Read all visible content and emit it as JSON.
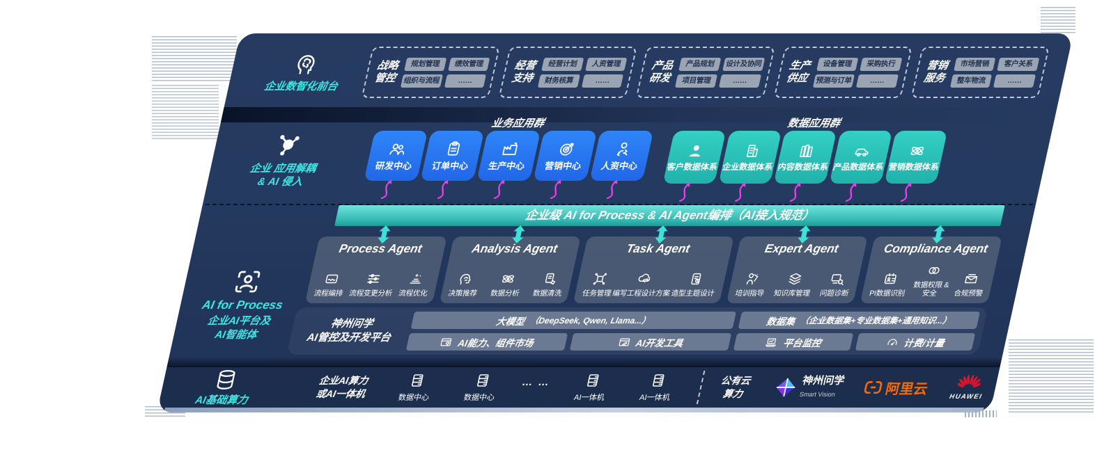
{
  "colors": {
    "panel_navy": "#25395f",
    "accent_cyan": "#3ce8e2",
    "box_blue": "#2b7bf6",
    "box_teal": "#2fc9be",
    "banner_teal": "#3fc4bd",
    "arrow_magenta": "#ee3ff0",
    "chip_gray": "#9ba4b3",
    "aliyun_orange": "#ff6a00",
    "huawei_red": "#e2132a"
  },
  "front_office": {
    "icon": "brain-head",
    "label": "企业数智化前台",
    "groups": [
      {
        "name": "战略管控",
        "items": [
          "规划管理",
          "绩效管理",
          "组织与流程",
          "……"
        ]
      },
      {
        "name": "经营支持",
        "items": [
          "经营计划",
          "人资管理",
          "财务核算",
          "……"
        ]
      },
      {
        "name": "产品研发",
        "items": [
          "产品规划",
          "设计及协同",
          "项目管理",
          "……"
        ]
      },
      {
        "name": "生产供应",
        "items": [
          "设备管理",
          "采购执行",
          "预测与订单",
          "……"
        ]
      },
      {
        "name": "营销服务",
        "items": [
          "市场营销",
          "客户关系",
          "整车物流",
          "……"
        ]
      }
    ]
  },
  "app_layer": {
    "icon": "molecule",
    "label_line1": "企业 应用解耦",
    "label_line2": "& AI 侵入",
    "business_group": {
      "title": "业务应用群",
      "boxes": [
        {
          "label": "研发中心",
          "icon": "team"
        },
        {
          "label": "订单中心",
          "icon": "clipboard"
        },
        {
          "label": "生产中心",
          "icon": "factory"
        },
        {
          "label": "营销中心",
          "icon": "target"
        },
        {
          "label": "人资中心",
          "icon": "hr-people"
        }
      ]
    },
    "data_group": {
      "title": "数据应用群",
      "boxes": [
        {
          "label": "客户数据体系",
          "icon": "person"
        },
        {
          "label": "企业数据体系",
          "icon": "building"
        },
        {
          "label": "内容数据体系",
          "icon": "books"
        },
        {
          "label": "产品数据体系",
          "icon": "car"
        },
        {
          "label": "营销数据体系",
          "icon": "atom"
        }
      ]
    }
  },
  "banner": {
    "text": "企业级 AI for Process & AI Agent编排（AI接入规范）"
  },
  "ai_layer": {
    "icon": "scan-person",
    "label_en": "AI for Process",
    "label_zh1": "企业AI平台及",
    "label_zh2": "AI智能体",
    "agents": [
      {
        "title": "Process Agent",
        "items": [
          {
            "label": "流程编排",
            "icon": "flow-box"
          },
          {
            "label": "流程变更分析",
            "icon": "sliders"
          },
          {
            "label": "流程优化",
            "icon": "optimize"
          }
        ]
      },
      {
        "title": "Analysis Agent",
        "items": [
          {
            "label": "决策推荐",
            "icon": "head-idea"
          },
          {
            "label": "数据分析",
            "icon": "atom"
          },
          {
            "label": "数据清洗",
            "icon": "doc-clean"
          }
        ]
      },
      {
        "title": "Task Agent",
        "items": [
          {
            "label": "任务管理",
            "icon": "task-grid"
          },
          {
            "label": "编写工程设计方案",
            "icon": "cloud-pen"
          },
          {
            "label": "造型主题设计",
            "icon": "card-check"
          }
        ]
      },
      {
        "title": "Expert Agent",
        "items": [
          {
            "label": "培训指导",
            "icon": "mentor"
          },
          {
            "label": "知识库管理",
            "icon": "layers"
          },
          {
            "label": "问题诊断",
            "icon": "diagnose"
          }
        ]
      },
      {
        "title": "Compliance Agent",
        "items": [
          {
            "label": "PI数据识别",
            "icon": "id-card"
          },
          {
            "label": "数据权限 & 安全",
            "icon": "rings"
          },
          {
            "label": "合规预警",
            "icon": "mail-alert"
          }
        ]
      }
    ]
  },
  "platform": {
    "name_line1": "神州问学",
    "name_line2": "AI管控及开发平台",
    "model_bar_title": "大模型",
    "model_bar_sub": "（DeepSeek, Qwen, Llama...）",
    "dataset_bar_title": "数据集",
    "dataset_bar_sub": "（企业数据集+专业数据集+通用知识...）",
    "tools": [
      {
        "label": "AI能力、组件市场",
        "icon": "window-gear"
      },
      {
        "label": "AI开发工具",
        "icon": "window-pen"
      },
      {
        "label": "平台监控",
        "icon": "laptop-chart"
      },
      {
        "label": "计费/计量",
        "icon": "gauge"
      }
    ]
  },
  "infra": {
    "icon": "database",
    "label": "AI基础算力",
    "compute_line1": "企业AI算力",
    "compute_line2": "或AI一体机",
    "nodes": [
      {
        "label": "数据中心",
        "icon": "server"
      },
      {
        "label": "数据中心",
        "icon": "server"
      },
      {
        "label": "AI一体机",
        "icon": "server"
      },
      {
        "label": "AI一体机",
        "icon": "server"
      }
    ],
    "dots": "… …",
    "public_cloud_line1": "公有云",
    "public_cloud_line2": "算力",
    "logos": [
      {
        "name": "神州问学",
        "sub": "Smart Vision",
        "icon": "sv-diamond"
      },
      {
        "name": "阿里云",
        "icon": "ali-brackets"
      },
      {
        "name": "HUAWEI",
        "icon": "huawei-fan"
      }
    ]
  }
}
